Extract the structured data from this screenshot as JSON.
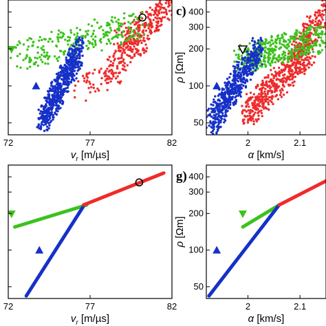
{
  "colors": {
    "red": "#ef2b2b",
    "green": "#3cc21d",
    "blue": "#1630c8",
    "axis": "#000000"
  },
  "chart_data": [
    {
      "id": "panel-b",
      "type": "scatter",
      "xlabel": "v_r [m/µs]",
      "xlabel_var": "v",
      "xlabel_sub": "r",
      "xlabel_unit": " [m/µs]",
      "xlim": [
        72,
        82
      ],
      "ylim": [
        40,
        500
      ],
      "yscale": "log",
      "xticks": [
        72,
        77,
        82
      ],
      "yticks": [
        50,
        100,
        200,
        300,
        400
      ],
      "grid": false,
      "series": [
        {
          "color": "red",
          "marker": "dot",
          "region": [
            [
              76.2,
              90,
              79,
              140,
              60
            ],
            [
              78.8,
              220,
              81.8,
              420,
              230
            ],
            [
              78,
              130,
              80.5,
              260,
              120
            ]
          ]
        },
        {
          "color": "green",
          "marker": "dot",
          "region": [
            [
              72.8,
              175,
              80,
              320,
              260
            ]
          ]
        },
        {
          "color": "blue",
          "marker": "dot",
          "region": [
            [
              74.0,
              50,
              76.4,
              200,
              600
            ]
          ]
        }
      ],
      "markers": [
        {
          "shape": "circle",
          "x": 80.2,
          "y": 360
        },
        {
          "shape": "triangle-down",
          "x": 72.2,
          "y": 198,
          "color": "green"
        },
        {
          "shape": "triangle-up",
          "x": 73.7,
          "y": 100,
          "color": "blue"
        }
      ]
    },
    {
      "id": "panel-c",
      "letter": "c)",
      "type": "scatter",
      "xlabel": "α [km/s]",
      "xlabel_var": "α",
      "xlabel_unit": " [km/s]",
      "ylabel": "ρ [Ωm]",
      "ylabel_var": "ρ",
      "ylabel_unit": " [Ωm]",
      "xlim": [
        1.92,
        2.15
      ],
      "ylim": [
        40,
        500
      ],
      "yscale": "log",
      "xticks": [
        2,
        2.1
      ],
      "yticks": [
        50,
        100,
        200,
        300,
        400
      ],
      "ytick_labels": [
        "50",
        "100",
        "200",
        "300",
        "400"
      ],
      "grid": false,
      "series": [
        {
          "color": "red",
          "marker": "dot",
          "region": [
            [
              2.0,
              60,
              2.12,
              200,
              500
            ],
            [
              2.09,
              200,
              2.15,
              400,
              160
            ]
          ]
        },
        {
          "color": "green",
          "marker": "dot",
          "region": [
            [
              1.99,
              165,
              2.15,
              250,
              420
            ]
          ]
        },
        {
          "color": "blue",
          "marker": "dot",
          "region": [
            [
              1.93,
              50,
              2.02,
              200,
              550
            ]
          ]
        }
      ],
      "markers": [
        {
          "shape": "triangle-down-open",
          "x": 1.99,
          "y": 198
        },
        {
          "shape": "triangle-up",
          "x": 1.94,
          "y": 100,
          "color": "blue"
        }
      ]
    },
    {
      "id": "panel-f",
      "type": "scatter",
      "xlabel": "v_r [m/µs]",
      "xlabel_var": "v",
      "xlabel_sub": "r",
      "xlabel_unit": " [m/µs]",
      "xlim": [
        72,
        82
      ],
      "ylim": [
        40,
        500
      ],
      "yscale": "log",
      "xticks": [
        72,
        77,
        82
      ],
      "yticks": [
        50,
        100,
        200,
        300,
        400
      ],
      "grid": false,
      "series": [
        {
          "color": "green",
          "marker": "line",
          "points": [
            [
              72.4,
              155
            ],
            [
              76.8,
              235
            ]
          ]
        },
        {
          "color": "blue",
          "marker": "line",
          "points": [
            [
              73.1,
              42
            ],
            [
              76.6,
              230
            ]
          ]
        },
        {
          "color": "red",
          "marker": "line",
          "points": [
            [
              76.6,
              235
            ],
            [
              81.5,
              430
            ]
          ]
        }
      ],
      "markers": [
        {
          "shape": "circle",
          "x": 80.0,
          "y": 360
        },
        {
          "shape": "triangle-down",
          "x": 72.2,
          "y": 198,
          "color": "green"
        },
        {
          "shape": "triangle-up",
          "x": 73.9,
          "y": 100,
          "color": "blue"
        }
      ]
    },
    {
      "id": "panel-g",
      "letter": "g)",
      "type": "scatter",
      "xlabel": "α [km/s]",
      "xlabel_var": "α",
      "xlabel_unit": " [km/s]",
      "ylabel": "ρ [Ωm]",
      "ylabel_var": "ρ",
      "ylabel_unit": " [Ωm]",
      "xlim": [
        1.92,
        2.15
      ],
      "ylim": [
        40,
        500
      ],
      "yscale": "log",
      "xticks": [
        2,
        2.1
      ],
      "yticks": [
        50,
        100,
        200,
        300,
        400
      ],
      "ytick_labels": [
        "50",
        "100",
        "200",
        "300",
        "400"
      ],
      "grid": false,
      "series": [
        {
          "color": "green",
          "marker": "line",
          "points": [
            [
              1.99,
              155
            ],
            [
              2.06,
              235
            ]
          ]
        },
        {
          "color": "blue",
          "marker": "line",
          "points": [
            [
              1.925,
              42
            ],
            [
              2.06,
              235
            ]
          ]
        },
        {
          "color": "red",
          "marker": "line",
          "points": [
            [
              2.06,
              235
            ],
            [
              2.15,
              370
            ]
          ]
        }
      ],
      "markers": [
        {
          "shape": "triangle-down",
          "x": 1.99,
          "y": 198,
          "color": "green"
        },
        {
          "shape": "triangle-up",
          "x": 1.94,
          "y": 100,
          "color": "blue"
        }
      ]
    }
  ]
}
